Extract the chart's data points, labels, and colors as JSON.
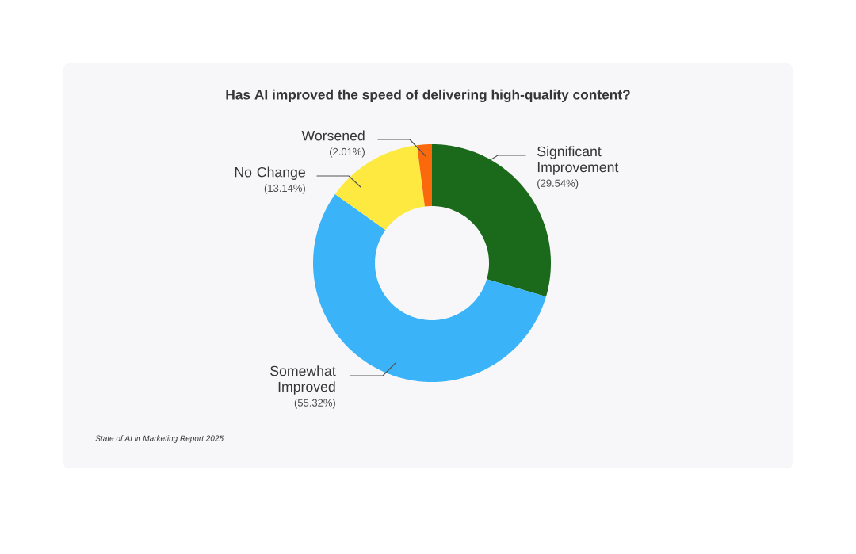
{
  "chart_data": {
    "type": "donut",
    "title": "Has AI improved the speed of delivering high-quality content?",
    "categories": [
      "Significant Improvement",
      "Somewhat Improved",
      "No Change",
      "Worsened"
    ],
    "values": [
      29.54,
      55.32,
      13.14,
      2.01
    ],
    "colors": [
      "#1b691b",
      "#3ab3f8",
      "#fde93f",
      "#fa6a0c"
    ],
    "value_labels": [
      "(29.54%)",
      "(55.32%)",
      "(13.14%)",
      "(2.01%)"
    ],
    "annotations": [
      "State of AI in Marketing Report 2025"
    ]
  }
}
